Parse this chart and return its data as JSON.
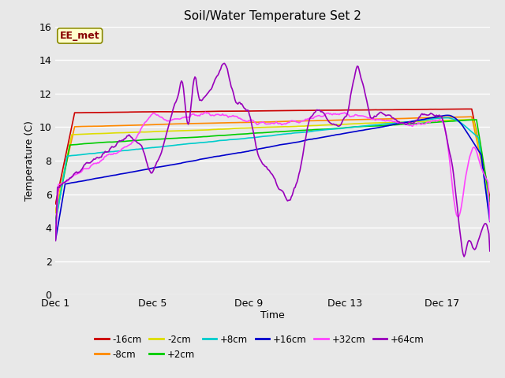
{
  "title": "Soil/Water Temperature Set 2",
  "xlabel": "Time",
  "ylabel": "Temperature (C)",
  "ylim": [
    0,
    16
  ],
  "yticks": [
    0,
    2,
    4,
    6,
    8,
    10,
    12,
    14,
    16
  ],
  "bg_color": "#e8e8e8",
  "annotation_text": "EE_met",
  "xtick_labels": [
    "Dec 1",
    "Dec 5",
    "Dec 9",
    "Dec 13",
    "Dec 17"
  ],
  "xtick_positions": [
    0,
    4,
    8,
    12,
    16
  ],
  "legend_row1": [
    [
      "-16cm",
      "#cc0000"
    ],
    [
      "-8cm",
      "#ff8800"
    ],
    [
      "-2cm",
      "#dddd00"
    ],
    [
      "+2cm",
      "#00cc00"
    ],
    [
      "+8cm",
      "#00cccc"
    ],
    [
      "+16cm",
      "#0000cc"
    ]
  ],
  "legend_row2": [
    [
      "+32cm",
      "#ff44ff"
    ],
    [
      "+64cm",
      "#9900bb"
    ]
  ]
}
